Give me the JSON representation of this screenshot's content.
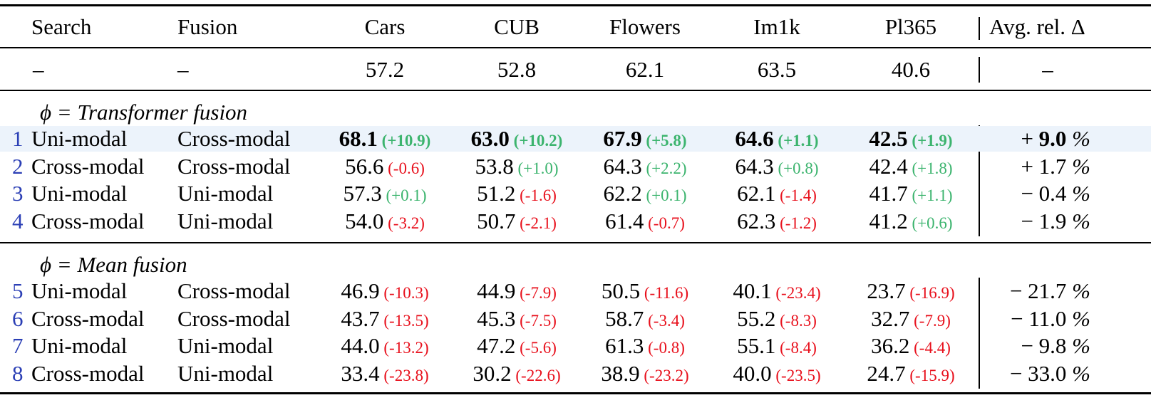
{
  "caption_fragment": "",
  "headers": {
    "search": "Search",
    "fusion": "Fusion",
    "datasets": [
      "Cars",
      "CUB",
      "Flowers",
      "Im1k",
      "Pl365"
    ],
    "avg": "Avg. rel. Δ"
  },
  "baseline": {
    "search": "–",
    "fusion": "–",
    "values": [
      "57.2",
      "52.8",
      "62.1",
      "63.5",
      "40.6"
    ],
    "avg": "–"
  },
  "sections": [
    {
      "title_symbol": "ϕ",
      "title_text": " = Transformer fusion",
      "rows": [
        {
          "index": "1",
          "search": "Uni-modal",
          "fusion": "Cross-modal",
          "cells": [
            [
              "68.1",
              "(+10.9)"
            ],
            [
              "63.0",
              "(+10.2)"
            ],
            [
              "67.9",
              "(+5.8)"
            ],
            [
              "64.6",
              "(+1.1)"
            ],
            [
              "42.5",
              "(+1.9)"
            ]
          ],
          "avg_sign": "+",
          "avg": "9.0 %"
        },
        {
          "index": "2",
          "search": "Cross-modal",
          "fusion": "Cross-modal",
          "cells": [
            [
              "56.6",
              "(-0.6)"
            ],
            [
              "53.8",
              "(+1.0)"
            ],
            [
              "64.3",
              "(+2.2)"
            ],
            [
              "64.3",
              "(+0.8)"
            ],
            [
              "42.4",
              "(+1.8)"
            ]
          ],
          "avg_sign": "+",
          "avg": "1.7 %"
        },
        {
          "index": "3",
          "search": "Uni-modal",
          "fusion": "Uni-modal",
          "cells": [
            [
              "57.3",
              "(+0.1)"
            ],
            [
              "51.2",
              "(-1.6)"
            ],
            [
              "62.2",
              "(+0.1)"
            ],
            [
              "62.1",
              "(-1.4)"
            ],
            [
              "41.7",
              "(+1.1)"
            ]
          ],
          "avg_sign": "−",
          "avg": "0.4 %"
        },
        {
          "index": "4",
          "search": "Cross-modal",
          "fusion": "Uni-modal",
          "cells": [
            [
              "54.0",
              "(-3.2)"
            ],
            [
              "50.7",
              "(-2.1)"
            ],
            [
              "61.4",
              "(-0.7)"
            ],
            [
              "62.3",
              "(-1.2)"
            ],
            [
              "41.2",
              "(+0.6)"
            ]
          ],
          "avg_sign": "−",
          "avg": "1.9 %"
        }
      ]
    },
    {
      "title_symbol": "ϕ",
      "title_text": " = Mean fusion",
      "rows": [
        {
          "index": "5",
          "search": "Uni-modal",
          "fusion": "Cross-modal",
          "cells": [
            [
              "46.9",
              "(-10.3)"
            ],
            [
              "44.9",
              "(-7.9)"
            ],
            [
              "50.5",
              "(-11.6)"
            ],
            [
              "40.1",
              "(-23.4)"
            ],
            [
              "23.7",
              "(-16.9)"
            ]
          ],
          "avg_sign": "−",
          "avg": "21.7 %"
        },
        {
          "index": "6",
          "search": "Cross-modal",
          "fusion": "Cross-modal",
          "cells": [
            [
              "43.7",
              "(-13.5)"
            ],
            [
              "45.3",
              "(-7.5)"
            ],
            [
              "58.7",
              "(-3.4)"
            ],
            [
              "55.2",
              "(-8.3)"
            ],
            [
              "32.7",
              "(-7.9)"
            ]
          ],
          "avg_sign": "−",
          "avg": "11.0 %"
        },
        {
          "index": "7",
          "search": "Uni-modal",
          "fusion": "Uni-modal",
          "cells": [
            [
              "44.0",
              "(-13.2)"
            ],
            [
              "47.2",
              "(-5.6)"
            ],
            [
              "61.3",
              "(-0.8)"
            ],
            [
              "55.1",
              "(-8.4)"
            ],
            [
              "36.2",
              "(-4.4)"
            ]
          ],
          "avg_sign": "−",
          "avg": "9.8 %"
        },
        {
          "index": "8",
          "search": "Cross-modal",
          "fusion": "Uni-modal",
          "cells": [
            [
              "33.4",
              "(-23.8)"
            ],
            [
              "30.2",
              "(-22.6)"
            ],
            [
              "38.9",
              "(-23.2)"
            ],
            [
              "40.0",
              "(-23.5)"
            ],
            [
              "24.7",
              "(-15.9)"
            ]
          ],
          "avg_sign": "−",
          "avg": "33.0 %"
        }
      ]
    }
  ],
  "bold_row_index": "1",
  "colors": {
    "positive": "#3cb46e",
    "negative": "#e8101c",
    "index": "#2b3fb5",
    "highlight": "#ecf3fb"
  }
}
